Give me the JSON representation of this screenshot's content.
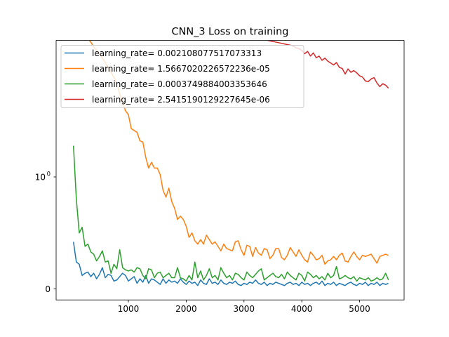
{
  "chart_data": {
    "type": "line",
    "title": "CNN_3 Loss on training",
    "xlabel": "",
    "ylabel": "",
    "xlim": [
      -250,
      5770
    ],
    "ylim_note": "symlog y-axis",
    "x_ticks": [
      {
        "value": 1000,
        "label": "1000"
      },
      {
        "value": 2000,
        "label": "2000"
      },
      {
        "value": 3000,
        "label": "3000"
      },
      {
        "value": 4000,
        "label": "4000"
      },
      {
        "value": 5000,
        "label": "5000"
      }
    ],
    "y_ticks": [
      {
        "value": 0,
        "label": "0"
      },
      {
        "value": 1,
        "label": "10",
        "exponent": "0"
      }
    ],
    "legend_position": "top-left",
    "colors": {
      "blue": "#1f77b4",
      "orange": "#ff7f0e",
      "green": "#2ca02c",
      "red": "#d62728"
    },
    "x": [
      50,
      100,
      150,
      200,
      250,
      300,
      350,
      400,
      450,
      500,
      550,
      600,
      650,
      700,
      750,
      800,
      850,
      900,
      950,
      1000,
      1050,
      1100,
      1150,
      1200,
      1250,
      1300,
      1350,
      1400,
      1450,
      1500,
      1550,
      1600,
      1650,
      1700,
      1750,
      1800,
      1850,
      1900,
      1950,
      2000,
      2050,
      2100,
      2150,
      2200,
      2250,
      2300,
      2350,
      2400,
      2450,
      2500,
      2550,
      2600,
      2650,
      2700,
      2750,
      2800,
      2850,
      2900,
      2950,
      3000,
      3050,
      3100,
      3150,
      3200,
      3250,
      3300,
      3350,
      3400,
      3450,
      3500,
      3550,
      3600,
      3650,
      3700,
      3750,
      3800,
      3850,
      3900,
      3950,
      4000,
      4050,
      4100,
      4150,
      4200,
      4250,
      4300,
      4350,
      4400,
      4450,
      4500,
      4550,
      4600,
      4650,
      4700,
      4750,
      4800,
      4850,
      4900,
      4950,
      5000,
      5050,
      5100,
      5150,
      5200,
      5250,
      5300,
      5350,
      5400,
      5450,
      5500
    ],
    "series": [
      {
        "name": "learning_rate= 0.002108077517073313",
        "color": "#1f77b4",
        "values": [
          0.42,
          0.24,
          0.22,
          0.12,
          0.14,
          0.15,
          0.11,
          0.14,
          0.09,
          0.13,
          0.19,
          0.1,
          0.13,
          0.12,
          0.07,
          0.08,
          0.11,
          0.14,
          0.12,
          0.07,
          0.09,
          0.11,
          0.05,
          0.09,
          0.06,
          0.12,
          0.05,
          0.09,
          0.08,
          0.06,
          0.04,
          0.09,
          0.05,
          0.08,
          0.06,
          0.07,
          0.05,
          0.09,
          0.06,
          0.04,
          0.07,
          0.05,
          0.06,
          0.03,
          0.08,
          0.05,
          0.04,
          0.09,
          0.05,
          0.06,
          0.04,
          0.08,
          0.05,
          0.04,
          0.06,
          0.05,
          0.07,
          0.04,
          0.03,
          0.05,
          0.04,
          0.06,
          0.05,
          0.08,
          0.05,
          0.04,
          0.06,
          0.03,
          0.05,
          0.04,
          0.06,
          0.05,
          0.04,
          0.03,
          0.05,
          0.06,
          0.04,
          0.05,
          0.03,
          0.06,
          0.04,
          0.05,
          0.03,
          0.05,
          0.06,
          0.04,
          0.07,
          0.03,
          0.05,
          0.04,
          0.06,
          0.03,
          0.05,
          0.04,
          0.03,
          0.05,
          0.06,
          0.04,
          0.03,
          0.05,
          0.04,
          0.06,
          0.03,
          0.05,
          0.04,
          0.06,
          0.03,
          0.05,
          0.04,
          0.05
        ]
      },
      {
        "name": "learning_rate= 1.5667020226572236e-05",
        "color": "#ff7f0e",
        "values": [
          24.0,
          22.5,
          21.5,
          20.0,
          18.5,
          17.0,
          16.0,
          14.5,
          13.5,
          12.5,
          11.5,
          10.5,
          9.5,
          8.6,
          7.8,
          6.8,
          5.5,
          4.6,
          3.9,
          3.6,
          2.7,
          2.6,
          2.5,
          2.1,
          2.05,
          1.5,
          1.2,
          1.35,
          1.2,
          1.2,
          1.05,
          0.88,
          0.82,
          0.9,
          0.78,
          0.72,
          0.62,
          0.65,
          0.62,
          0.56,
          0.46,
          0.5,
          0.43,
          0.4,
          0.44,
          0.4,
          0.48,
          0.44,
          0.4,
          0.42,
          0.38,
          0.34,
          0.4,
          0.36,
          0.35,
          0.34,
          0.42,
          0.43,
          0.35,
          0.3,
          0.39,
          0.38,
          0.29,
          0.37,
          0.32,
          0.3,
          0.36,
          0.35,
          0.27,
          0.3,
          0.36,
          0.36,
          0.28,
          0.26,
          0.3,
          0.37,
          0.33,
          0.29,
          0.35,
          0.3,
          0.26,
          0.24,
          0.33,
          0.3,
          0.26,
          0.27,
          0.3,
          0.22,
          0.25,
          0.26,
          0.29,
          0.26,
          0.3,
          0.32,
          0.25,
          0.24,
          0.29,
          0.33,
          0.29,
          0.26,
          0.3,
          0.29,
          0.3,
          0.31,
          0.27,
          0.23,
          0.29,
          0.3,
          0.31,
          0.3
        ]
      },
      {
        "name": "learning_rate= 0.0003749884003353646",
        "color": "#2ca02c",
        "values": [
          1.9,
          0.8,
          0.5,
          0.55,
          0.38,
          0.4,
          0.33,
          0.31,
          0.25,
          0.29,
          0.34,
          0.24,
          0.25,
          0.14,
          0.22,
          0.18,
          0.35,
          0.19,
          0.17,
          0.16,
          0.17,
          0.15,
          0.19,
          0.18,
          0.12,
          0.09,
          0.18,
          0.17,
          0.1,
          0.14,
          0.15,
          0.1,
          0.12,
          0.14,
          0.1,
          0.1,
          0.19,
          0.1,
          0.09,
          0.07,
          0.12,
          0.08,
          0.24,
          0.1,
          0.16,
          0.08,
          0.12,
          0.18,
          0.1,
          0.12,
          0.08,
          0.19,
          0.14,
          0.1,
          0.12,
          0.08,
          0.14,
          0.13,
          0.1,
          0.08,
          0.15,
          0.12,
          0.1,
          0.13,
          0.16,
          0.18,
          0.08,
          0.1,
          0.12,
          0.14,
          0.11,
          0.1,
          0.13,
          0.09,
          0.15,
          0.12,
          0.1,
          0.08,
          0.14,
          0.12,
          0.07,
          0.15,
          0.13,
          0.1,
          0.12,
          0.09,
          0.11,
          0.08,
          0.14,
          0.1,
          0.12,
          0.2,
          0.09,
          0.1,
          0.12,
          0.1,
          0.09,
          0.11,
          0.07,
          0.1,
          0.09,
          0.08,
          0.1,
          0.07,
          0.08,
          0.1,
          0.08,
          0.09,
          0.14,
          0.08
        ]
      },
      {
        "name": "learning_rate= 2.5415190129227645e-06",
        "color": "#d62728",
        "values": [
          24.0,
          23.9,
          23.8,
          23.7,
          23.6,
          23.5,
          23.4,
          23.3,
          23.2,
          23.1,
          23.0,
          22.9,
          22.8,
          22.7,
          22.6,
          22.5,
          22.4,
          22.3,
          22.2,
          22.1,
          22.0,
          21.9,
          21.8,
          21.7,
          21.6,
          21.5,
          21.4,
          21.3,
          21.2,
          21.1,
          21.0,
          20.9,
          20.8,
          20.7,
          20.6,
          20.5,
          20.4,
          20.3,
          20.2,
          20.1,
          20.0,
          19.9,
          19.8,
          19.7,
          19.6,
          19.5,
          19.4,
          19.3,
          19.2,
          19.1,
          19.0,
          18.9,
          18.8,
          18.7,
          18.6,
          18.5,
          18.4,
          18.3,
          18.2,
          18.1,
          18.0,
          17.8,
          17.6,
          17.4,
          17.2,
          17.0,
          16.8,
          16.6,
          16.4,
          16.2,
          16.0,
          15.8,
          15.6,
          15.4,
          15.2,
          15.0,
          14.8,
          14.2,
          14.0,
          13.5,
          12.6,
          13.2,
          12.0,
          12.8,
          11.6,
          12.0,
          11.0,
          11.5,
          10.8,
          10.4,
          10.0,
          10.5,
          9.5,
          9.3,
          8.3,
          9.2,
          8.6,
          8.9,
          8.5,
          8.0,
          7.8,
          7.2,
          7.1,
          7.5,
          7.7,
          6.9,
          6.4,
          6.8,
          6.6,
          6.2
        ]
      }
    ]
  }
}
